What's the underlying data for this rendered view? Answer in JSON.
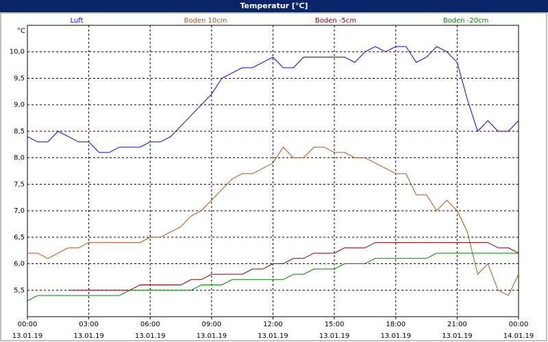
{
  "chart_data": {
    "type": "line",
    "title": "Temperatur [°C]",
    "y_unit": "°C",
    "x": [
      0,
      0.5,
      1,
      1.5,
      2,
      2.5,
      3,
      3.5,
      4,
      4.5,
      5,
      5.5,
      6,
      6.5,
      7,
      7.5,
      8,
      8.5,
      9,
      9.5,
      10,
      10.5,
      11,
      11.5,
      12,
      12.5,
      13,
      13.5,
      14,
      14.5,
      15,
      15.5,
      16,
      16.5,
      17,
      17.5,
      18,
      18.5,
      19,
      19.5,
      20,
      20.5,
      21,
      21.5,
      22,
      22.5,
      23,
      23.5,
      24
    ],
    "series": [
      {
        "name": "Luft",
        "color": "#0000ff",
        "values": [
          8.4,
          8.3,
          8.3,
          8.5,
          8.4,
          8.3,
          8.3,
          8.1,
          8.1,
          8.2,
          8.2,
          8.2,
          8.3,
          8.3,
          8.4,
          8.6,
          8.8,
          9.0,
          9.2,
          9.5,
          9.6,
          9.7,
          9.7,
          9.8,
          9.9,
          9.7,
          9.7,
          9.9,
          9.9,
          9.9,
          9.9,
          9.9,
          9.8,
          10.0,
          10.1,
          10.0,
          10.1,
          10.1,
          9.8,
          9.9,
          10.1,
          10.0,
          9.8,
          9.1,
          8.5,
          8.7,
          8.5,
          8.5,
          8.7
        ]
      },
      {
        "name": "Boden 10cm",
        "color": "#a8561c",
        "values": [
          6.2,
          6.2,
          6.1,
          6.2,
          6.3,
          6.3,
          6.4,
          6.4,
          6.4,
          6.4,
          6.4,
          6.4,
          6.5,
          6.5,
          6.6,
          6.7,
          6.9,
          7.0,
          7.2,
          7.4,
          7.6,
          7.7,
          7.7,
          7.8,
          7.9,
          8.2,
          8.0,
          8.0,
          8.2,
          8.2,
          8.1,
          8.1,
          8.0,
          8.0,
          7.9,
          7.8,
          7.7,
          7.7,
          7.3,
          7.3,
          7.0,
          7.2,
          7.0,
          6.6,
          5.8,
          6.0,
          5.5,
          5.4,
          5.8
        ]
      },
      {
        "name": "Boden -5cm",
        "color": "#800000",
        "values": [
          null,
          null,
          null,
          null,
          5.5,
          5.5,
          5.5,
          5.5,
          5.5,
          5.5,
          5.5,
          5.6,
          5.6,
          5.6,
          5.6,
          5.6,
          5.7,
          5.7,
          5.8,
          5.8,
          5.8,
          5.8,
          5.9,
          5.9,
          6.0,
          6.0,
          6.1,
          6.1,
          6.2,
          6.2,
          6.2,
          6.3,
          6.3,
          6.3,
          6.4,
          6.4,
          6.4,
          6.4,
          6.4,
          6.4,
          6.4,
          6.4,
          6.4,
          6.4,
          6.4,
          6.4,
          6.3,
          6.3,
          6.2
        ]
      },
      {
        "name": "Boden -20cm",
        "color": "#008000",
        "values": [
          5.3,
          5.4,
          5.4,
          5.4,
          5.4,
          5.4,
          5.4,
          5.4,
          5.4,
          5.4,
          5.5,
          5.5,
          5.5,
          5.5,
          5.5,
          5.5,
          5.5,
          5.6,
          5.6,
          5.6,
          5.7,
          5.7,
          5.7,
          5.7,
          5.7,
          5.7,
          5.8,
          5.8,
          5.9,
          5.9,
          5.9,
          6.0,
          6.0,
          6.0,
          6.1,
          6.1,
          6.1,
          6.1,
          6.1,
          6.1,
          6.2,
          6.2,
          6.2,
          6.2,
          6.2,
          6.2,
          6.2,
          6.2,
          6.2
        ]
      }
    ],
    "xlim": [
      0,
      24
    ],
    "xticks": [
      {
        "value": 0,
        "label": "00:00 13.01.19"
      },
      {
        "value": 3,
        "label": "03:00 13.01.19"
      },
      {
        "value": 6,
        "label": "06:00 13.01.19"
      },
      {
        "value": 9,
        "label": "09:00 13.01.19"
      },
      {
        "value": 12,
        "label": "12:00 13.01.19"
      },
      {
        "value": 15,
        "label": "15:00 13.01.19"
      },
      {
        "value": 18,
        "label": "18:00 13.01.19"
      },
      {
        "value": 21,
        "label": "21:00 13.01.19"
      },
      {
        "value": 24,
        "label": "00:00 14.01.19"
      }
    ],
    "ylim": [
      5.0,
      10.5
    ],
    "yticks": [
      {
        "value": 5.5,
        "label": "5,5"
      },
      {
        "value": 6.0,
        "label": "6,0"
      },
      {
        "value": 6.5,
        "label": "6,5"
      },
      {
        "value": 7.0,
        "label": "7,0"
      },
      {
        "value": 7.5,
        "label": "7,5"
      },
      {
        "value": 8.0,
        "label": "8,0"
      },
      {
        "value": 8.5,
        "label": "8,5"
      },
      {
        "value": 9.0,
        "label": "9,0"
      },
      {
        "value": 9.5,
        "label": "9,5"
      },
      {
        "value": 10.0,
        "label": "10,0"
      }
    ],
    "grid": true
  }
}
